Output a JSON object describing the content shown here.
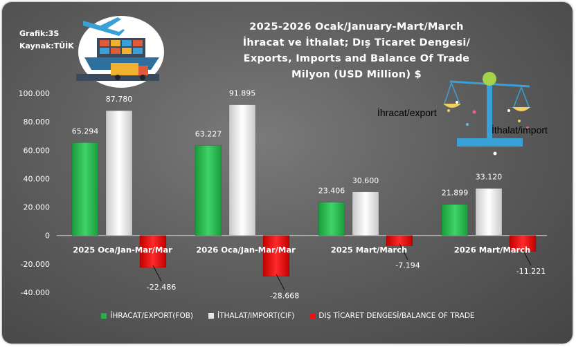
{
  "header": {
    "grafik": "Grafik:3S",
    "kaynak": "Kaynak:TÜİK"
  },
  "icons": {
    "trade_illustration": "plane-ship-truck-icon",
    "scale_illustration": "balance-scale-icon"
  },
  "chart_data": {
    "type": "bar",
    "title_lines": [
      "2025-2026 Ocak/January-Mart/March",
      "İhracat ve İthalat; Dış Ticaret Dengesi/",
      "Exports, Imports and Balance Of Trade",
      "Milyon (USD Million) $"
    ],
    "categories": [
      "2025 Oca/Jan-Mar/Mar",
      "2026 Oca/Jan-Mar/Mar",
      "2025 Mart/March",
      "2026 Mart/March"
    ],
    "series": [
      {
        "name": "İHRACAT/EXPORT(FOB)",
        "color": "#22b14c",
        "values": [
          65294,
          63227,
          23406,
          21899
        ],
        "labels": [
          "65.294",
          "63.227",
          "23.406",
          "21.899"
        ]
      },
      {
        "name": "İTHALAT/IMPORT(CIF)",
        "color": "#e6e6e6",
        "values": [
          87780,
          91895,
          30600,
          33120
        ],
        "labels": [
          "87.780",
          "91.895",
          "30.600",
          "33.120"
        ]
      },
      {
        "name": "DIŞ TİCARET DENGESİ/BALANCE OF TRADE",
        "color": "#ee1111",
        "values": [
          -22486,
          -28668,
          -7194,
          -11221
        ],
        "labels": [
          "-22.486",
          "-28.668",
          "-7.194",
          "-11.221"
        ]
      }
    ],
    "yticks": [
      100000,
      80000,
      60000,
      40000,
      20000,
      0,
      -20000,
      -40000
    ],
    "ytick_labels": [
      "100.000",
      "80.000",
      "60.000",
      "40.000",
      "20.000",
      "0",
      "-20.000",
      "-40.000"
    ],
    "ylim": [
      -40000,
      100000
    ],
    "grid": false,
    "legend_position": "bottom"
  },
  "annotations": {
    "export": "İhracat/export",
    "import": "İthalat/import"
  }
}
